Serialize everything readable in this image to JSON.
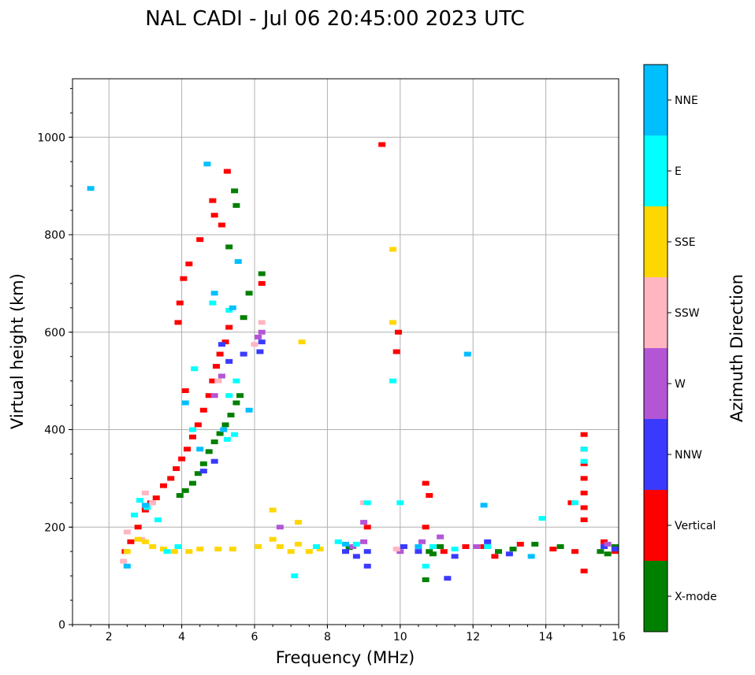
{
  "chart_data": {
    "type": "scatter",
    "title": "NAL CADI - Jul 06 20:45:00 2023 UTC",
    "xlabel": "Frequency (MHz)",
    "ylabel": "Virtual height (km)",
    "xlim": [
      1,
      16
    ],
    "ylim": [
      0,
      1120
    ],
    "xticks": [
      2,
      4,
      6,
      8,
      10,
      12,
      14,
      16
    ],
    "yticks": [
      0,
      200,
      400,
      600,
      800,
      1000
    ],
    "grid": true,
    "colorbar": {
      "label": "Azimuth Direction",
      "categories": [
        "X-mode",
        "Vertical",
        "NNW",
        "W",
        "SSW",
        "SSE",
        "E",
        "NNE"
      ],
      "colors": [
        "#008000",
        "#ff0000",
        "#3a3aff",
        "#b455d6",
        "#ffb6c1",
        "#ffd700",
        "#00ffff",
        "#00bfff"
      ]
    },
    "series": [
      {
        "name": "X-mode",
        "points": [
          [
            3.95,
            265
          ],
          [
            4.1,
            275
          ],
          [
            4.3,
            290
          ],
          [
            4.45,
            310
          ],
          [
            4.6,
            330
          ],
          [
            4.75,
            355
          ],
          [
            4.9,
            375
          ],
          [
            5.05,
            392
          ],
          [
            5.2,
            410
          ],
          [
            5.35,
            430
          ],
          [
            5.5,
            455
          ],
          [
            5.6,
            470
          ],
          [
            5.3,
            775
          ],
          [
            5.5,
            860
          ],
          [
            5.45,
            890
          ],
          [
            5.7,
            630
          ],
          [
            5.85,
            680
          ],
          [
            6.2,
            720
          ],
          [
            10.7,
            92
          ],
          [
            10.8,
            150
          ],
          [
            11.1,
            160
          ],
          [
            12.7,
            150
          ],
          [
            13.1,
            155
          ],
          [
            13.7,
            165
          ],
          [
            14.4,
            160
          ],
          [
            15.5,
            150
          ],
          [
            15.7,
            145
          ],
          [
            15.9,
            160
          ],
          [
            10.9,
            145
          ],
          [
            8.6,
            158
          ]
        ]
      },
      {
        "name": "Vertical",
        "points": [
          [
            2.45,
            150
          ],
          [
            2.6,
            170
          ],
          [
            2.8,
            200
          ],
          [
            3.0,
            235
          ],
          [
            3.15,
            250
          ],
          [
            3.3,
            260
          ],
          [
            3.5,
            285
          ],
          [
            3.7,
            300
          ],
          [
            3.85,
            320
          ],
          [
            4.0,
            340
          ],
          [
            4.15,
            360
          ],
          [
            4.3,
            385
          ],
          [
            4.45,
            410
          ],
          [
            4.6,
            440
          ],
          [
            4.75,
            470
          ],
          [
            4.85,
            500
          ],
          [
            4.95,
            530
          ],
          [
            5.05,
            555
          ],
          [
            5.2,
            580
          ],
          [
            5.3,
            610
          ],
          [
            4.05,
            710
          ],
          [
            4.2,
            740
          ],
          [
            4.5,
            790
          ],
          [
            4.9,
            840
          ],
          [
            5.1,
            820
          ],
          [
            5.25,
            930
          ],
          [
            4.85,
            870
          ],
          [
            3.95,
            660
          ],
          [
            3.9,
            620
          ],
          [
            4.1,
            480
          ],
          [
            6.2,
            700
          ],
          [
            9.5,
            985
          ],
          [
            9.95,
            600
          ],
          [
            9.9,
            560
          ],
          [
            10.7,
            290
          ],
          [
            10.8,
            265
          ],
          [
            9.1,
            200
          ],
          [
            10.7,
            200
          ],
          [
            11.2,
            150
          ],
          [
            11.8,
            160
          ],
          [
            12.3,
            160
          ],
          [
            13.3,
            165
          ],
          [
            14.2,
            155
          ],
          [
            14.8,
            150
          ],
          [
            15.05,
            390
          ],
          [
            15.05,
            360
          ],
          [
            15.05,
            330
          ],
          [
            15.05,
            300
          ],
          [
            15.05,
            270
          ],
          [
            15.05,
            240
          ],
          [
            15.05,
            215
          ],
          [
            15.05,
            110
          ],
          [
            15.6,
            170
          ],
          [
            15.9,
            150
          ],
          [
            14.7,
            250
          ],
          [
            12.6,
            140
          ]
        ]
      },
      {
        "name": "NNW",
        "points": [
          [
            5.1,
            575
          ],
          [
            5.3,
            540
          ],
          [
            5.7,
            555
          ],
          [
            6.2,
            580
          ],
          [
            6.15,
            560
          ],
          [
            4.6,
            315
          ],
          [
            4.9,
            335
          ],
          [
            9.1,
            120
          ],
          [
            9.1,
            150
          ],
          [
            8.5,
            150
          ],
          [
            8.8,
            140
          ],
          [
            10.1,
            160
          ],
          [
            10.5,
            150
          ],
          [
            11.5,
            140
          ],
          [
            11.3,
            95
          ],
          [
            12.4,
            170
          ],
          [
            13.0,
            145
          ],
          [
            15.6,
            160
          ],
          [
            15.9,
            155
          ]
        ]
      },
      {
        "name": "W",
        "points": [
          [
            6.2,
            600
          ],
          [
            6.1,
            590
          ],
          [
            5.1,
            510
          ],
          [
            4.9,
            470
          ],
          [
            6.7,
            200
          ],
          [
            9.0,
            210
          ],
          [
            9.0,
            170
          ],
          [
            8.7,
            160
          ],
          [
            10.0,
            150
          ],
          [
            10.6,
            170
          ],
          [
            11.1,
            180
          ],
          [
            12.1,
            160
          ],
          [
            15.7,
            165
          ]
        ]
      },
      {
        "name": "SSW",
        "points": [
          [
            2.4,
            130
          ],
          [
            2.5,
            190
          ],
          [
            3.0,
            270
          ],
          [
            3.2,
            250
          ],
          [
            5.0,
            500
          ],
          [
            6.0,
            575
          ],
          [
            6.2,
            620
          ],
          [
            2.9,
            175
          ],
          [
            9.0,
            250
          ],
          [
            9.9,
            155
          ]
        ]
      },
      {
        "name": "SSE",
        "points": [
          [
            2.5,
            150
          ],
          [
            2.8,
            175
          ],
          [
            3.0,
            170
          ],
          [
            3.2,
            160
          ],
          [
            3.5,
            155
          ],
          [
            3.8,
            150
          ],
          [
            4.2,
            150
          ],
          [
            4.5,
            155
          ],
          [
            5.0,
            155
          ],
          [
            5.4,
            155
          ],
          [
            6.1,
            160
          ],
          [
            6.5,
            175
          ],
          [
            6.7,
            160
          ],
          [
            7.0,
            150
          ],
          [
            7.2,
            165
          ],
          [
            7.5,
            150
          ],
          [
            7.8,
            155
          ],
          [
            6.5,
            235
          ],
          [
            7.3,
            580
          ],
          [
            9.8,
            770
          ],
          [
            9.8,
            620
          ],
          [
            7.2,
            210
          ]
        ]
      },
      {
        "name": "E",
        "points": [
          [
            2.7,
            225
          ],
          [
            2.85,
            255
          ],
          [
            3.05,
            240
          ],
          [
            3.35,
            215
          ],
          [
            3.6,
            150
          ],
          [
            3.9,
            160
          ],
          [
            4.3,
            400
          ],
          [
            4.35,
            525
          ],
          [
            5.3,
            470
          ],
          [
            5.45,
            390
          ],
          [
            5.25,
            380
          ],
          [
            4.85,
            660
          ],
          [
            5.3,
            645
          ],
          [
            5.5,
            500
          ],
          [
            7.1,
            100
          ],
          [
            8.3,
            170
          ],
          [
            8.8,
            165
          ],
          [
            9.1,
            250
          ],
          [
            9.8,
            500
          ],
          [
            10.0,
            250
          ],
          [
            10.7,
            120
          ],
          [
            10.9,
            160
          ],
          [
            11.5,
            155
          ],
          [
            12.4,
            160
          ],
          [
            13.9,
            218
          ],
          [
            14.8,
            250
          ],
          [
            15.05,
            360
          ],
          [
            15.05,
            335
          ],
          [
            7.7,
            160
          ]
        ]
      },
      {
        "name": "NNE",
        "points": [
          [
            1.5,
            895
          ],
          [
            2.5,
            120
          ],
          [
            3.0,
            245
          ],
          [
            4.1,
            455
          ],
          [
            4.5,
            360
          ],
          [
            4.7,
            945
          ],
          [
            4.9,
            680
          ],
          [
            5.15,
            400
          ],
          [
            5.4,
            650
          ],
          [
            5.55,
            745
          ],
          [
            5.85,
            440
          ],
          [
            11.85,
            555
          ],
          [
            8.5,
            165
          ],
          [
            10.5,
            160
          ],
          [
            12.3,
            245
          ],
          [
            13.6,
            140
          ]
        ]
      }
    ]
  }
}
